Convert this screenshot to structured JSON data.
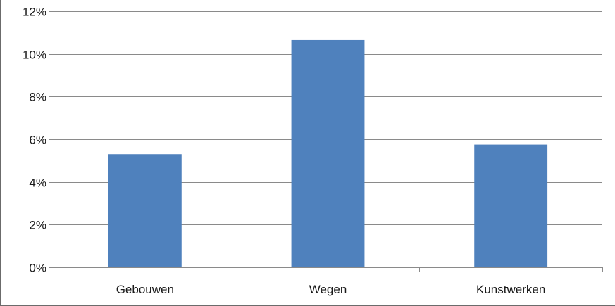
{
  "chart_data": {
    "type": "bar",
    "categories": [
      "Gebouwen",
      "Wegen",
      "Kunstwerken"
    ],
    "values": [
      5.3,
      10.65,
      5.75
    ],
    "y_ticks": [
      "0%",
      "2%",
      "4%",
      "6%",
      "8%",
      "10%",
      "12%"
    ],
    "ylim": [
      0,
      12
    ],
    "y_unit": "%",
    "title": "",
    "xlabel": "",
    "ylabel": "",
    "grid": true,
    "legend": "none",
    "colors": {
      "bar": "#4f81bd",
      "grid": "#8a8a8a",
      "axis": "#8a8a8a",
      "text": "#1a1a1a"
    }
  }
}
